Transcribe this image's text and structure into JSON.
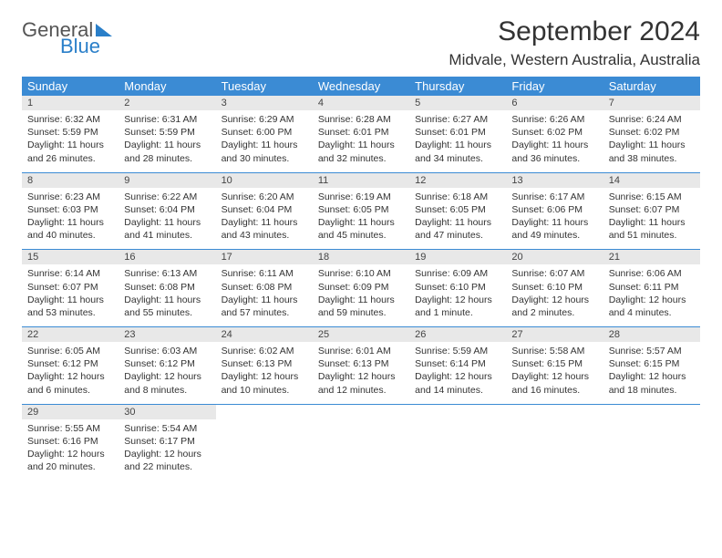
{
  "logo": {
    "word1": "General",
    "word2": "Blue"
  },
  "title": "September 2024",
  "location": "Midvale, Western Australia, Australia",
  "weekdays": [
    "Sunday",
    "Monday",
    "Tuesday",
    "Wednesday",
    "Thursday",
    "Friday",
    "Saturday"
  ],
  "colors": {
    "header_bg": "#3b8bd4",
    "header_text": "#ffffff",
    "daynum_bg": "#e8e8e8",
    "divider": "#3b8bd4",
    "logo_blue": "#2a7fc9"
  },
  "weeks": [
    [
      {
        "n": "1",
        "sunrise": "Sunrise: 6:32 AM",
        "sunset": "Sunset: 5:59 PM",
        "day": "Daylight: 11 hours and 26 minutes."
      },
      {
        "n": "2",
        "sunrise": "Sunrise: 6:31 AM",
        "sunset": "Sunset: 5:59 PM",
        "day": "Daylight: 11 hours and 28 minutes."
      },
      {
        "n": "3",
        "sunrise": "Sunrise: 6:29 AM",
        "sunset": "Sunset: 6:00 PM",
        "day": "Daylight: 11 hours and 30 minutes."
      },
      {
        "n": "4",
        "sunrise": "Sunrise: 6:28 AM",
        "sunset": "Sunset: 6:01 PM",
        "day": "Daylight: 11 hours and 32 minutes."
      },
      {
        "n": "5",
        "sunrise": "Sunrise: 6:27 AM",
        "sunset": "Sunset: 6:01 PM",
        "day": "Daylight: 11 hours and 34 minutes."
      },
      {
        "n": "6",
        "sunrise": "Sunrise: 6:26 AM",
        "sunset": "Sunset: 6:02 PM",
        "day": "Daylight: 11 hours and 36 minutes."
      },
      {
        "n": "7",
        "sunrise": "Sunrise: 6:24 AM",
        "sunset": "Sunset: 6:02 PM",
        "day": "Daylight: 11 hours and 38 minutes."
      }
    ],
    [
      {
        "n": "8",
        "sunrise": "Sunrise: 6:23 AM",
        "sunset": "Sunset: 6:03 PM",
        "day": "Daylight: 11 hours and 40 minutes."
      },
      {
        "n": "9",
        "sunrise": "Sunrise: 6:22 AM",
        "sunset": "Sunset: 6:04 PM",
        "day": "Daylight: 11 hours and 41 minutes."
      },
      {
        "n": "10",
        "sunrise": "Sunrise: 6:20 AM",
        "sunset": "Sunset: 6:04 PM",
        "day": "Daylight: 11 hours and 43 minutes."
      },
      {
        "n": "11",
        "sunrise": "Sunrise: 6:19 AM",
        "sunset": "Sunset: 6:05 PM",
        "day": "Daylight: 11 hours and 45 minutes."
      },
      {
        "n": "12",
        "sunrise": "Sunrise: 6:18 AM",
        "sunset": "Sunset: 6:05 PM",
        "day": "Daylight: 11 hours and 47 minutes."
      },
      {
        "n": "13",
        "sunrise": "Sunrise: 6:17 AM",
        "sunset": "Sunset: 6:06 PM",
        "day": "Daylight: 11 hours and 49 minutes."
      },
      {
        "n": "14",
        "sunrise": "Sunrise: 6:15 AM",
        "sunset": "Sunset: 6:07 PM",
        "day": "Daylight: 11 hours and 51 minutes."
      }
    ],
    [
      {
        "n": "15",
        "sunrise": "Sunrise: 6:14 AM",
        "sunset": "Sunset: 6:07 PM",
        "day": "Daylight: 11 hours and 53 minutes."
      },
      {
        "n": "16",
        "sunrise": "Sunrise: 6:13 AM",
        "sunset": "Sunset: 6:08 PM",
        "day": "Daylight: 11 hours and 55 minutes."
      },
      {
        "n": "17",
        "sunrise": "Sunrise: 6:11 AM",
        "sunset": "Sunset: 6:08 PM",
        "day": "Daylight: 11 hours and 57 minutes."
      },
      {
        "n": "18",
        "sunrise": "Sunrise: 6:10 AM",
        "sunset": "Sunset: 6:09 PM",
        "day": "Daylight: 11 hours and 59 minutes."
      },
      {
        "n": "19",
        "sunrise": "Sunrise: 6:09 AM",
        "sunset": "Sunset: 6:10 PM",
        "day": "Daylight: 12 hours and 1 minute."
      },
      {
        "n": "20",
        "sunrise": "Sunrise: 6:07 AM",
        "sunset": "Sunset: 6:10 PM",
        "day": "Daylight: 12 hours and 2 minutes."
      },
      {
        "n": "21",
        "sunrise": "Sunrise: 6:06 AM",
        "sunset": "Sunset: 6:11 PM",
        "day": "Daylight: 12 hours and 4 minutes."
      }
    ],
    [
      {
        "n": "22",
        "sunrise": "Sunrise: 6:05 AM",
        "sunset": "Sunset: 6:12 PM",
        "day": "Daylight: 12 hours and 6 minutes."
      },
      {
        "n": "23",
        "sunrise": "Sunrise: 6:03 AM",
        "sunset": "Sunset: 6:12 PM",
        "day": "Daylight: 12 hours and 8 minutes."
      },
      {
        "n": "24",
        "sunrise": "Sunrise: 6:02 AM",
        "sunset": "Sunset: 6:13 PM",
        "day": "Daylight: 12 hours and 10 minutes."
      },
      {
        "n": "25",
        "sunrise": "Sunrise: 6:01 AM",
        "sunset": "Sunset: 6:13 PM",
        "day": "Daylight: 12 hours and 12 minutes."
      },
      {
        "n": "26",
        "sunrise": "Sunrise: 5:59 AM",
        "sunset": "Sunset: 6:14 PM",
        "day": "Daylight: 12 hours and 14 minutes."
      },
      {
        "n": "27",
        "sunrise": "Sunrise: 5:58 AM",
        "sunset": "Sunset: 6:15 PM",
        "day": "Daylight: 12 hours and 16 minutes."
      },
      {
        "n": "28",
        "sunrise": "Sunrise: 5:57 AM",
        "sunset": "Sunset: 6:15 PM",
        "day": "Daylight: 12 hours and 18 minutes."
      }
    ],
    [
      {
        "n": "29",
        "sunrise": "Sunrise: 5:55 AM",
        "sunset": "Sunset: 6:16 PM",
        "day": "Daylight: 12 hours and 20 minutes."
      },
      {
        "n": "30",
        "sunrise": "Sunrise: 5:54 AM",
        "sunset": "Sunset: 6:17 PM",
        "day": "Daylight: 12 hours and 22 minutes."
      },
      null,
      null,
      null,
      null,
      null
    ]
  ]
}
